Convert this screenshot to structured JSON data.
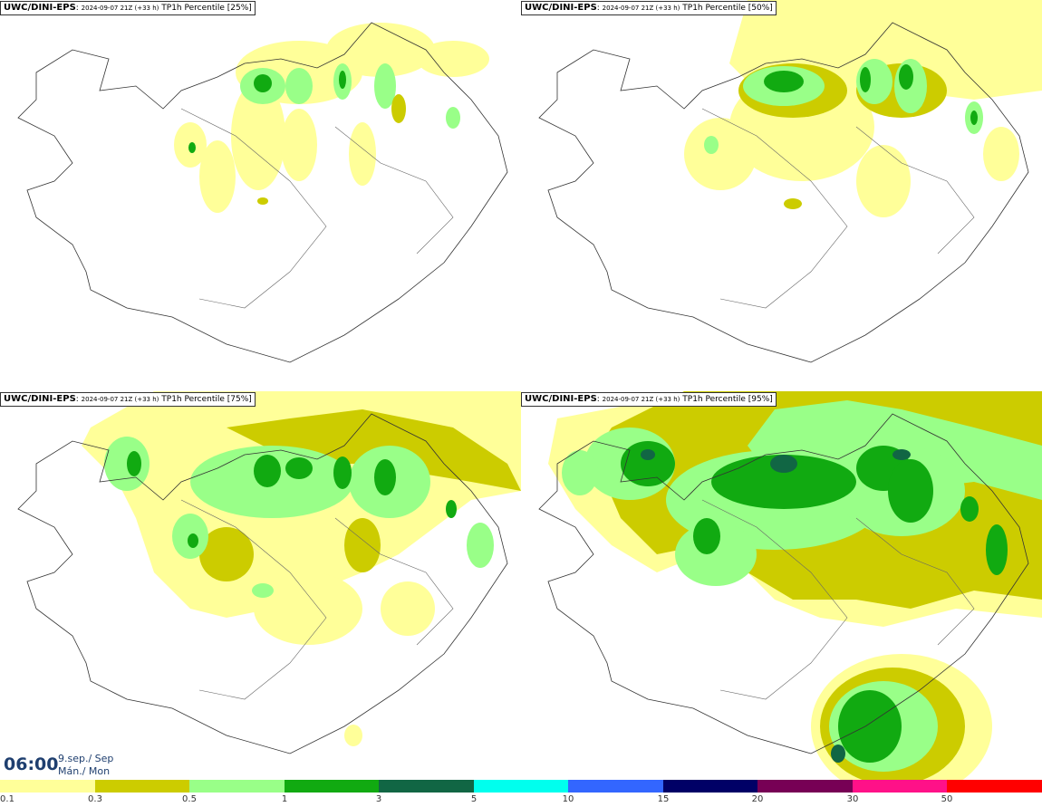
{
  "panels": [
    {
      "source": "UWC/DINI-EPS",
      "run": "2024-09-07 21Z (+33 h)",
      "field": "TP1h Percentile [25%]"
    },
    {
      "source": "UWC/DINI-EPS",
      "run": "2024-09-07 21Z (+33 h)",
      "field": "TP1h Percentile [50%]"
    },
    {
      "source": "UWC/DINI-EPS",
      "run": "2024-09-07 21Z (+33 h)",
      "field": "TP1h Percentile [75%]"
    },
    {
      "source": "UWC/DINI-EPS",
      "run": "2024-09-07 21Z (+33 h)",
      "field": "TP1h Percentile [95%]"
    }
  ],
  "valid_time": {
    "time": "06:00",
    "date_line1": "9.sep./ Sep",
    "date_line2": "Mán./ Mon"
  },
  "legend": {
    "labels": [
      "0.1",
      "0.3",
      "0.5",
      "1",
      "3",
      "5",
      "10",
      "15",
      "20",
      "30",
      "50"
    ],
    "colors": [
      "#ffff99",
      "#cccc00",
      "#99ff88",
      "#11aa11",
      "#116644",
      "#00ffee",
      "#3366ff",
      "#000066",
      "#770055",
      "#ff1188",
      "#ff0000"
    ]
  }
}
